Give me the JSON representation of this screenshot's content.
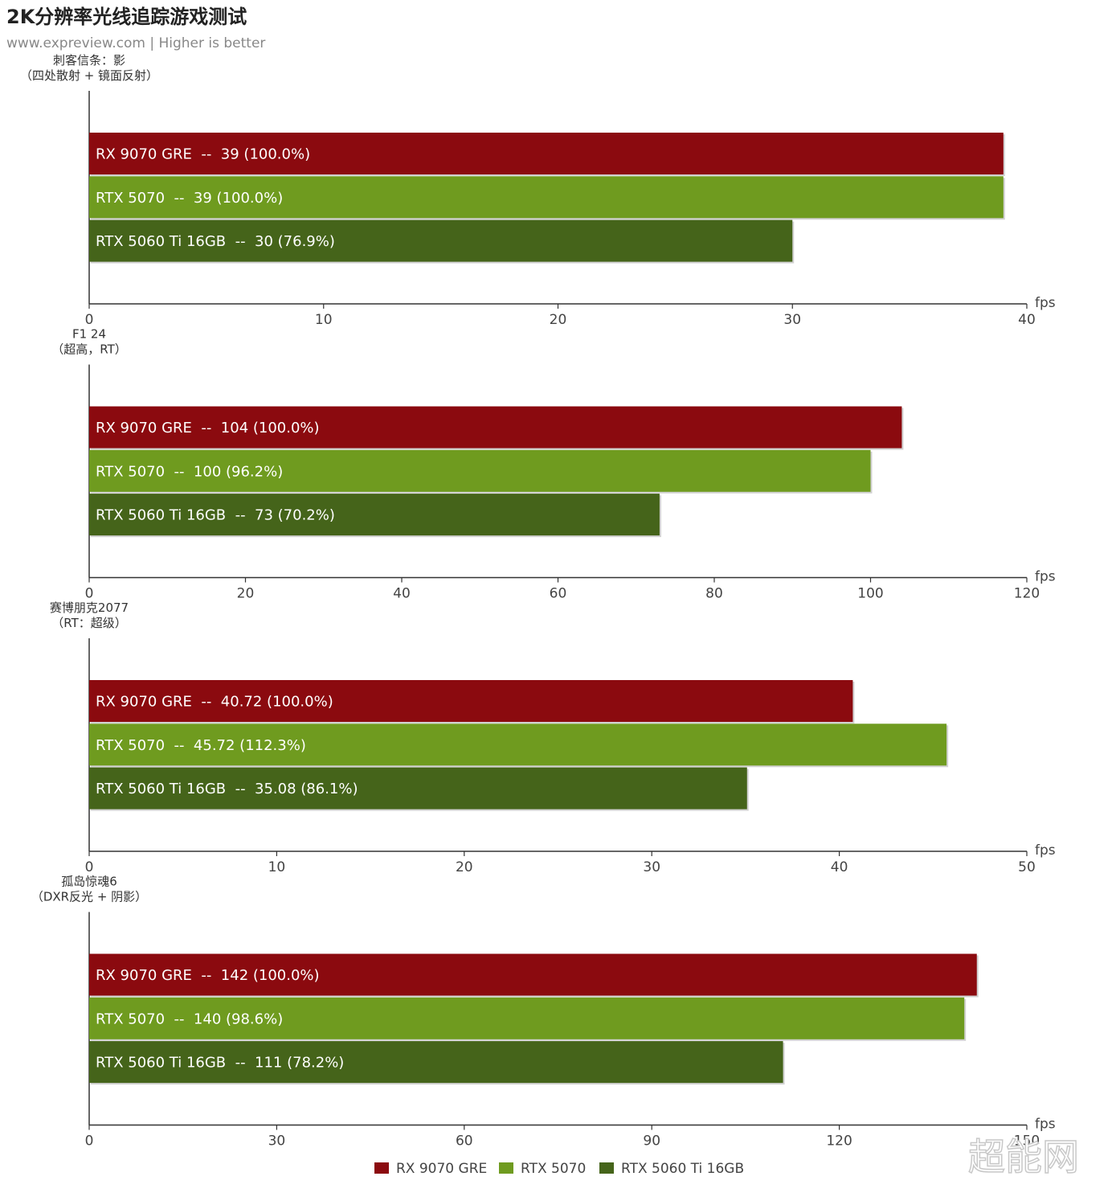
{
  "header": {
    "title": "2K分辨率光线追踪游戏测试",
    "subtitle": "www.expreview.com | Higher is better"
  },
  "watermark": "超能网",
  "colors": {
    "RX 9070 GRE": "#8b0a0f",
    "RTX 5070": "#6f9b1f",
    "RTX 5060 Ti 16GB": "#45641a"
  },
  "chart_data": [
    {
      "type": "bar",
      "orientation": "horizontal",
      "title": "刺客信条：影\n（四处散射 + 镜面反射）",
      "unit": "fps",
      "xlim": [
        0,
        40
      ],
      "xticks": [
        0,
        10,
        20,
        30,
        40
      ],
      "series": [
        {
          "name": "RX 9070 GRE",
          "value": 39,
          "label": "RX 9070 GRE  --  39 (100.0%)"
        },
        {
          "name": "RTX 5070",
          "value": 39,
          "label": "RTX 5070  --  39 (100.0%)"
        },
        {
          "name": "RTX 5060 Ti 16GB",
          "value": 30,
          "label": "RTX 5060 Ti 16GB  --  30 (76.9%)"
        }
      ]
    },
    {
      "type": "bar",
      "orientation": "horizontal",
      "title": "F1 24\n（超高，RT）",
      "unit": "fps",
      "xlim": [
        0,
        120
      ],
      "xticks": [
        0,
        20,
        40,
        60,
        80,
        100,
        120
      ],
      "series": [
        {
          "name": "RX 9070 GRE",
          "value": 104,
          "label": "RX 9070 GRE  --  104 (100.0%)"
        },
        {
          "name": "RTX 5070",
          "value": 100,
          "label": "RTX 5070  --  100 (96.2%)"
        },
        {
          "name": "RTX 5060 Ti 16GB",
          "value": 73,
          "label": "RTX 5060 Ti 16GB  --  73 (70.2%)"
        }
      ]
    },
    {
      "type": "bar",
      "orientation": "horizontal",
      "title": "赛博朋克2077\n（RT：超级）",
      "unit": "fps",
      "xlim": [
        0,
        50
      ],
      "xticks": [
        0,
        10,
        20,
        30,
        40,
        50
      ],
      "series": [
        {
          "name": "RX 9070 GRE",
          "value": 40.72,
          "label": "RX 9070 GRE  --  40.72 (100.0%)"
        },
        {
          "name": "RTX 5070",
          "value": 45.72,
          "label": "RTX 5070  --  45.72 (112.3%)"
        },
        {
          "name": "RTX 5060 Ti 16GB",
          "value": 35.08,
          "label": "RTX 5060 Ti 16GB  --  35.08 (86.1%)"
        }
      ]
    },
    {
      "type": "bar",
      "orientation": "horizontal",
      "title": "孤岛惊魂6\n（DXR反光 + 阴影）",
      "unit": "fps",
      "xlim": [
        0,
        150
      ],
      "xticks": [
        0,
        30,
        60,
        90,
        120,
        150
      ],
      "series": [
        {
          "name": "RX 9070 GRE",
          "value": 142,
          "label": "RX 9070 GRE  --  142 (100.0%)"
        },
        {
          "name": "RTX 5070",
          "value": 140,
          "label": "RTX 5070  --  140 (98.6%)"
        },
        {
          "name": "RTX 5060 Ti 16GB",
          "value": 111,
          "label": "RTX 5060 Ti 16GB  --  111 (78.2%)"
        }
      ]
    }
  ],
  "legend": {
    "placement": "bottom-center",
    "items": [
      "RX 9070 GRE",
      "RTX 5070",
      "RTX 5060 Ti 16GB"
    ]
  }
}
